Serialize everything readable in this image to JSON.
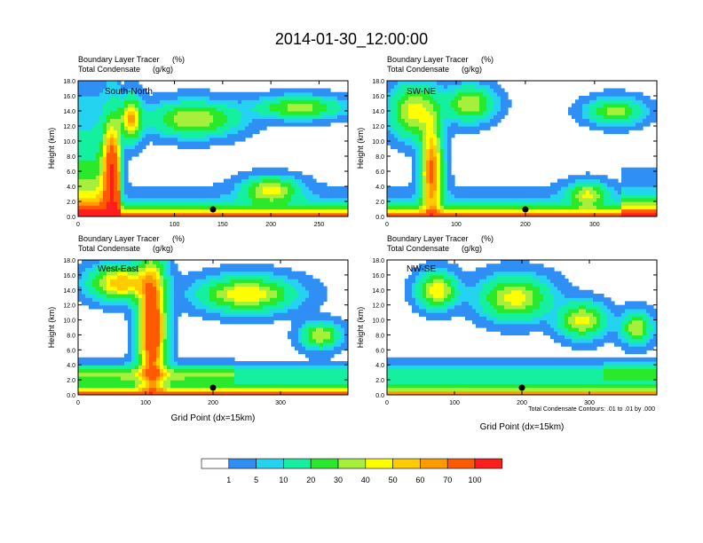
{
  "chart_data": {
    "type": "heatmap",
    "title": "2014-01-30_12:00:00",
    "colorbar": {
      "colors": [
        "#ffffff",
        "#2f8ff5",
        "#24d3f0",
        "#14f0a0",
        "#2ae82a",
        "#a6f03c",
        "#ffff00",
        "#ffcc00",
        "#ff9a00",
        "#ff5a00",
        "#ff1e1e"
      ],
      "labels": [
        "1",
        "5",
        "10",
        "20",
        "30",
        "40",
        "50",
        "60",
        "70",
        "100"
      ]
    },
    "panels": [
      {
        "name": "South-North",
        "line1": "Boundary Layer Tracer",
        "unit1": "(%)",
        "line2": "Total Condensate",
        "unit2": "(g/kg)",
        "ylabel": "Height (km)",
        "ylim": [
          0,
          18
        ],
        "yticks": [
          "0.0",
          "2.0",
          "4.0",
          "6.0",
          "8.0",
          "10.0",
          "12.0",
          "14.0",
          "16.0",
          "18.0"
        ],
        "xlim": [
          0,
          280
        ],
        "xticks": [
          "0",
          "100",
          "150",
          "200",
          "250"
        ],
        "xtickvals": [
          0,
          100,
          150,
          200,
          250
        ],
        "marker_x": 140,
        "xlabel": ""
      },
      {
        "name": "SW-NE",
        "line1": "Boundary Layer Tracer",
        "unit1": "(%)",
        "line2": "Total Condensate",
        "unit2": "(g/kg)",
        "ylabel": "Height (km)",
        "ylim": [
          0,
          18
        ],
        "yticks": [
          "0.0",
          "2.0",
          "4.0",
          "6.0",
          "8.0",
          "10.0",
          "12.0",
          "14.0",
          "16.0",
          "18.0"
        ],
        "xlim": [
          0,
          390
        ],
        "xticks": [
          "0",
          "100",
          "200",
          "300"
        ],
        "xtickvals": [
          0,
          100,
          200,
          300
        ],
        "marker_x": 200,
        "xlabel": ""
      },
      {
        "name": "West-East",
        "line1": "Boundary Layer Tracer",
        "unit1": "(%)",
        "line2": "Total Condensate",
        "unit2": "(g/kg)",
        "ylabel": "Height (km)",
        "ylim": [
          0,
          18
        ],
        "yticks": [
          "0.0",
          "2.0",
          "4.0",
          "6.0",
          "8.0",
          "10.0",
          "12.0",
          "14.0",
          "16.0",
          "18.0"
        ],
        "xlim": [
          0,
          400
        ],
        "xticks": [
          "0",
          "100",
          "200",
          "300"
        ],
        "xtickvals": [
          0,
          100,
          200,
          300
        ],
        "marker_x": 200,
        "xlabel": "Grid Point (dx=15km)"
      },
      {
        "name": "NW-SE",
        "line1": "Boundary Layer Tracer",
        "unit1": "(%)",
        "line2": "Total Condensate",
        "unit2": "(g/kg)",
        "ylabel": "Height (km)",
        "ylim": [
          0,
          18
        ],
        "yticks": [
          "0.0",
          "2.0",
          "4.0",
          "6.0",
          "8.0",
          "10.0",
          "12.0",
          "14.0",
          "16.0",
          "18.0"
        ],
        "xlim": [
          0,
          400
        ],
        "xticks": [
          "0",
          "100",
          "200",
          "300"
        ],
        "xtickvals": [
          0,
          100,
          200,
          300
        ],
        "marker_x": 200,
        "xlabel": "Grid Point (dx=15km)",
        "note": "Total Condensate Contours: .01 to .01 by .000"
      }
    ]
  }
}
